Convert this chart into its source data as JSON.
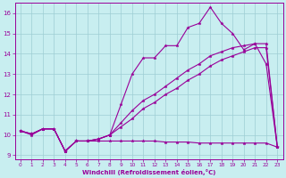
{
  "background_color": "#c8eef0",
  "grid_color": "#9ecdd4",
  "line_color": "#990099",
  "xlabel": "Windchill (Refroidissement éolien,°C)",
  "xlim": [
    -0.5,
    23.5
  ],
  "ylim": [
    8.8,
    16.5
  ],
  "yticks": [
    9,
    10,
    11,
    12,
    13,
    14,
    15,
    16
  ],
  "xticks": [
    0,
    1,
    2,
    3,
    4,
    5,
    6,
    7,
    8,
    9,
    10,
    11,
    12,
    13,
    14,
    15,
    16,
    17,
    18,
    19,
    20,
    21,
    22,
    23
  ],
  "line1_x": [
    0,
    1,
    2,
    3,
    4,
    5,
    6,
    7,
    8,
    9,
    10,
    11,
    12,
    13,
    14,
    15,
    16,
    17,
    18,
    19,
    20,
    21,
    22,
    23
  ],
  "line1_y": [
    10.2,
    10.0,
    10.3,
    10.3,
    9.2,
    9.7,
    9.7,
    9.8,
    10.0,
    11.5,
    13.0,
    13.8,
    13.8,
    14.4,
    14.4,
    15.3,
    15.5,
    16.3,
    15.5,
    15.0,
    14.2,
    14.5,
    13.5,
    9.4
  ],
  "line2_x": [
    0,
    1,
    2,
    3,
    4,
    5,
    6,
    7,
    8,
    9,
    10,
    11,
    12,
    13,
    14,
    15,
    16,
    17,
    18,
    19,
    20,
    21,
    22,
    23
  ],
  "line2_y": [
    10.2,
    10.05,
    10.3,
    10.3,
    9.2,
    9.7,
    9.7,
    9.8,
    10.0,
    10.6,
    11.2,
    11.7,
    12.0,
    12.4,
    12.8,
    13.2,
    13.5,
    13.9,
    14.1,
    14.3,
    14.4,
    14.5,
    14.5,
    9.4
  ],
  "line3_x": [
    0,
    1,
    2,
    3,
    4,
    5,
    6,
    7,
    8,
    9,
    10,
    11,
    12,
    13,
    14,
    15,
    16,
    17,
    18,
    19,
    20,
    21,
    22,
    23
  ],
  "line3_y": [
    10.2,
    10.05,
    10.3,
    10.3,
    9.2,
    9.7,
    9.7,
    9.8,
    10.0,
    10.4,
    10.8,
    11.3,
    11.6,
    12.0,
    12.3,
    12.7,
    13.0,
    13.4,
    13.7,
    13.9,
    14.1,
    14.3,
    14.3,
    9.4
  ],
  "line4_x": [
    0,
    1,
    2,
    3,
    4,
    5,
    6,
    7,
    8,
    9,
    10,
    11,
    12,
    13,
    14,
    15,
    16,
    17,
    18,
    19,
    20,
    21,
    22,
    23
  ],
  "line4_y": [
    10.2,
    10.05,
    10.3,
    10.3,
    9.2,
    9.7,
    9.7,
    9.7,
    9.7,
    9.7,
    9.7,
    9.7,
    9.7,
    9.65,
    9.65,
    9.65,
    9.6,
    9.6,
    9.6,
    9.6,
    9.6,
    9.6,
    9.6,
    9.4
  ]
}
